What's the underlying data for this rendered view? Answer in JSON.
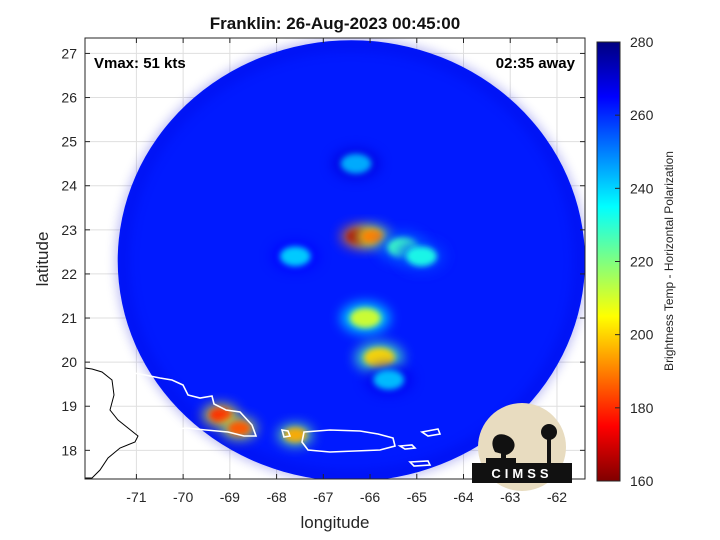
{
  "chart_data": {
    "type": "heatmap",
    "title": "Franklin: 26-Aug-2023 00:45:00",
    "xlabel": "longitude",
    "ylabel": "latitude",
    "xlim": [
      -72.1,
      -61.4
    ],
    "ylim": [
      17.35,
      27.35
    ],
    "xticks": [
      -71,
      -70,
      -69,
      -68,
      -67,
      -66,
      -65,
      -64,
      -63,
      -62
    ],
    "yticks": [
      18,
      19,
      20,
      21,
      22,
      23,
      24,
      25,
      26,
      27
    ],
    "grid": true,
    "annotations": {
      "vmax": "Vmax: 51 kts",
      "away": "02:35 away"
    },
    "colorbar": {
      "label": "Brightness Temp - Horizontal Polarization",
      "min": 160,
      "max": 280,
      "ticks": [
        160,
        180,
        200,
        220,
        240,
        260,
        280
      ],
      "colormap": "jet"
    },
    "swath": {
      "center_lon": -66.4,
      "center_lat": 22.3,
      "radius_deg": 5.0,
      "background_value": 262
    },
    "cold_features": [
      {
        "lon": -66.25,
        "lat": 22.85,
        "value": 165
      },
      {
        "lon": -65.95,
        "lat": 22.85,
        "value": 190
      },
      {
        "lon": -65.3,
        "lat": 22.6,
        "value": 228
      },
      {
        "lon": -64.9,
        "lat": 22.4,
        "value": 232
      },
      {
        "lon": -66.1,
        "lat": 21.0,
        "value": 210
      },
      {
        "lon": -65.8,
        "lat": 20.1,
        "value": 200
      },
      {
        "lon": -67.6,
        "lat": 22.4,
        "value": 240
      },
      {
        "lon": -69.2,
        "lat": 18.8,
        "value": 180
      },
      {
        "lon": -68.8,
        "lat": 18.5,
        "value": 185
      },
      {
        "lon": -67.6,
        "lat": 18.35,
        "value": 195
      },
      {
        "lon": -65.6,
        "lat": 19.6,
        "value": 242
      },
      {
        "lon": -66.3,
        "lat": 24.5,
        "value": 244
      }
    ],
    "logo": "CIMSS"
  }
}
